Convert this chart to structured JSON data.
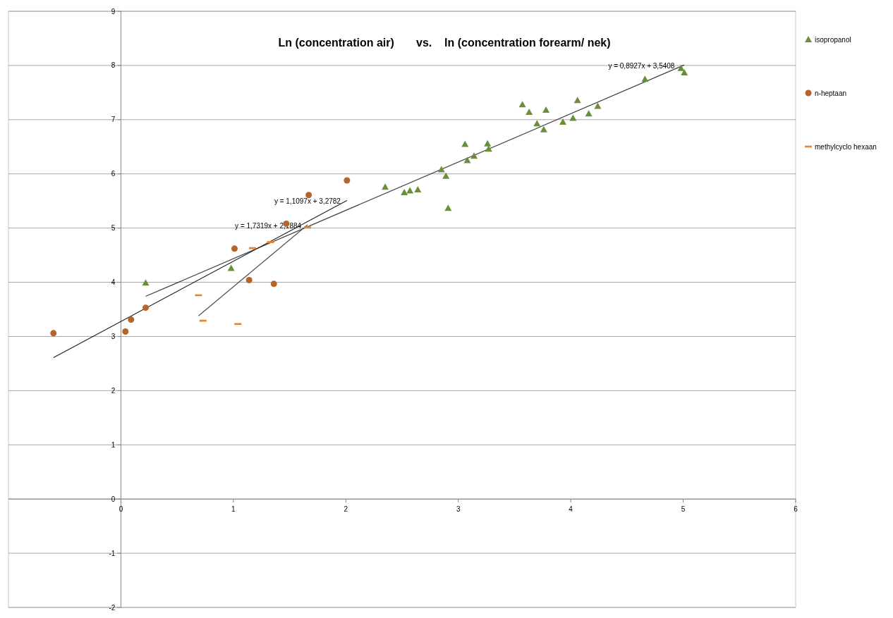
{
  "chart_data": {
    "type": "scatter",
    "title": "Ln (concentration air)       vs.    ln (concentration forearm/ nek)",
    "xlim": [
      -1,
      6
    ],
    "xticks": [
      0,
      1,
      2,
      3,
      4,
      5,
      6
    ],
    "ylim": [
      -2,
      9
    ],
    "yticks": [
      -2,
      -1,
      0,
      1,
      2,
      3,
      4,
      5,
      6,
      7,
      8,
      9
    ],
    "grid": "y",
    "legend": "right",
    "series": [
      {
        "name": "isopropanol",
        "color": "#6b8e3a",
        "marker": "triangle",
        "x": [
          0.22,
          0.98,
          2.35,
          2.52,
          2.57,
          2.64,
          2.85,
          2.89,
          2.91,
          3.06,
          3.08,
          3.14,
          3.26,
          3.27,
          3.57,
          3.63,
          3.7,
          3.76,
          3.78,
          3.93,
          4.02,
          4.06,
          4.16,
          4.24,
          4.66,
          4.98,
          5.01
        ],
        "values": [
          3.99,
          4.26,
          5.76,
          5.66,
          5.69,
          5.71,
          6.08,
          5.96,
          5.37,
          6.55,
          6.25,
          6.33,
          6.56,
          6.46,
          7.28,
          7.14,
          6.93,
          6.82,
          7.18,
          6.96,
          7.03,
          7.36,
          7.11,
          7.25,
          7.75,
          7.95,
          7.87
        ]
      },
      {
        "name": "n-heptaan",
        "color": "#b5652a",
        "marker": "circle",
        "x": [
          -0.6,
          0.04,
          0.09,
          0.22,
          1.01,
          1.14,
          1.36,
          1.47,
          1.67,
          2.01
        ],
        "values": [
          3.06,
          3.09,
          3.31,
          3.53,
          4.62,
          4.04,
          3.97,
          5.08,
          5.61,
          5.88
        ]
      },
      {
        "name": "methylcyclo hexaan",
        "color": "#e8822e",
        "x": [
          0.69,
          0.73,
          1.04,
          1.17,
          1.33,
          1.66
        ],
        "values": [
          3.76,
          3.29,
          3.23,
          4.63,
          4.74,
          5.01
        ]
      },
      {
        "type": "line",
        "color": "#404040",
        "x": [
          0.22,
          5.01
        ],
        "values": [
          3.74,
          8.01
        ]
      },
      {
        "type": "line",
        "color": "#202020",
        "x": [
          -0.6,
          2.01
        ],
        "values": [
          2.61,
          5.51
        ]
      },
      {
        "type": "line",
        "color": "#505050",
        "x": [
          0.69,
          1.66
        ],
        "values": [
          3.38,
          5.06
        ]
      }
    ],
    "annotations": [
      {
        "text": "y = 0,8927x + 3,5408",
        "x": 4.98,
        "y": 8.01
      },
      {
        "text": "y = 1,1097x + 3,2782",
        "x": 2.01,
        "y": 5.51
      },
      {
        "text": "y = 1,7319x + 2,1884",
        "x": 1.66,
        "y": 5.06
      }
    ]
  }
}
